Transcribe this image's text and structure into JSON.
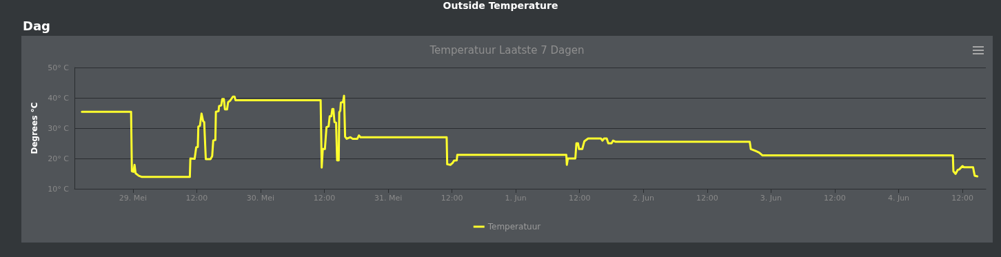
{
  "chart_data": {
    "type": "line",
    "title": "Temperatuur Laatste 7 Dagen",
    "ylabel": "Degrees °C",
    "annotations": [
      "Outside Temperature",
      "Dag"
    ],
    "xlim": [
      "--05-28T13:00",
      "--06-04T16:24"
    ],
    "xticks": [
      {
        "value": "--05-29",
        "label": "29. Mei"
      },
      {
        "value": "--05-29T12:00",
        "label": "12:00"
      },
      {
        "value": "--05-30",
        "label": "30. Mei"
      },
      {
        "value": "--05-30T12:00",
        "label": "12:00"
      },
      {
        "value": "--05-31",
        "label": "31. Mei"
      },
      {
        "value": "--05-31T12:00",
        "label": "12:00"
      },
      {
        "value": "--06-01",
        "label": "1. Jun"
      },
      {
        "value": "--06-01T12:00",
        "label": "12:00"
      },
      {
        "value": "--06-02",
        "label": "2. Jun"
      },
      {
        "value": "--06-02T12:00",
        "label": "12:00"
      },
      {
        "value": "--06-03",
        "label": "3. Jun"
      },
      {
        "value": "--06-03T12:00",
        "label": "12:00"
      },
      {
        "value": "--06-04",
        "label": "4. Jun"
      },
      {
        "value": "--06-04T12:00",
        "label": "12:00"
      }
    ],
    "ylim": [
      10,
      50
    ],
    "yticks": [
      {
        "value": 10,
        "label": "10° C"
      },
      {
        "value": 20,
        "label": "20° C"
      },
      {
        "value": 30,
        "label": "30° C"
      },
      {
        "value": 40,
        "label": "40° C"
      },
      {
        "value": 50,
        "label": "50° C"
      }
    ],
    "grid": "y",
    "legend": "bottom",
    "marker": "none",
    "line_style": "solid",
    "series": [
      {
        "name": "Temperatuur",
        "color": "#ffff2e",
        "x": [
          "--05-28T14:24",
          "--05-28T23:39",
          "--05-28T23:48",
          "--05-29T00:06",
          "--05-29T00:18",
          "--05-29T00:30",
          "--05-29T01:06",
          "--05-29T01:42",
          "--05-29T10:42",
          "--05-29T10:48",
          "--05-29T11:36",
          "--05-29T11:54",
          "--05-29T12:12",
          "--05-29T12:18",
          "--05-29T12:36",
          "--05-29T12:54",
          "--05-29T13:12",
          "--05-29T13:24",
          "--05-29T13:42",
          "--05-29T14:36",
          "--05-29T14:54",
          "--05-29T15:06",
          "--05-29T15:30",
          "--05-29T15:36",
          "--05-29T16:06",
          "--05-29T16:12",
          "--05-29T16:36",
          "--05-29T16:48",
          "--05-29T17:06",
          "--05-29T17:18",
          "--05-29T17:42",
          "--05-29T17:54",
          "--05-29T18:18",
          "--05-29T18:48",
          "--05-29T19:06",
          "--05-29T19:18",
          "--05-30T11:18",
          "--05-30T11:30",
          "--05-30T11:42",
          "--05-30T12:06",
          "--05-30T12:24",
          "--05-30T12:48",
          "--05-30T13:00",
          "--05-30T13:18",
          "--05-30T13:30",
          "--05-30T13:42",
          "--05-30T13:54",
          "--05-30T14:12",
          "--05-30T14:24",
          "--05-30T14:42",
          "--05-30T14:48",
          "--05-30T15:00",
          "--05-30T15:06",
          "--05-30T15:30",
          "--05-30T15:42",
          "--05-30T15:54",
          "--05-30T16:12",
          "--05-30T16:54",
          "--05-30T17:18",
          "--05-30T18:12",
          "--05-30T18:30",
          "--05-30T18:48",
          "--05-31T11:00",
          "--05-31T11:06",
          "--05-31T11:42",
          "--05-31T12:06",
          "--05-31T12:24",
          "--05-31T12:54",
          "--05-31T13:00",
          "--06-01T09:30",
          "--06-01T09:36",
          "--06-01T09:48",
          "--06-01T11:12",
          "--06-01T11:24",
          "--06-01T11:42",
          "--06-01T11:54",
          "--06-01T12:30",
          "--06-01T12:54",
          "--06-01T13:36",
          "--06-01T16:00",
          "--06-01T16:18",
          "--06-01T16:36",
          "--06-01T17:06",
          "--06-01T17:24",
          "--06-01T18:00",
          "--06-01T18:18",
          "--06-01T18:48",
          "--06-02T20:00",
          "--06-02T20:12",
          "--06-02T21:12",
          "--06-02T21:48",
          "--06-02T22:24",
          "--06-04T10:12",
          "--06-04T10:18",
          "--06-04T10:42",
          "--06-04T11:06",
          "--06-04T11:24",
          "--06-04T12:00",
          "--06-04T12:18",
          "--06-04T14:00",
          "--06-04T14:18",
          "--06-04T14:48"
        ],
        "values": [
          35.4,
          35.4,
          15.8,
          15.6,
          17.9,
          15.1,
          14.3,
          13.9,
          13.9,
          20.0,
          19.9,
          23.7,
          23.8,
          30.5,
          30.8,
          34.8,
          32.3,
          32.0,
          19.8,
          19.8,
          20.8,
          25.9,
          26.1,
          35.4,
          35.6,
          37.3,
          37.5,
          39.6,
          39.6,
          36.2,
          36.2,
          38.6,
          39.1,
          40.4,
          40.4,
          39.2,
          39.2,
          17.0,
          23.1,
          23.1,
          30.3,
          30.6,
          33.9,
          33.9,
          36.3,
          36.3,
          32.0,
          31.8,
          19.4,
          19.4,
          35.2,
          35.8,
          38.4,
          38.6,
          40.7,
          27.2,
          26.5,
          27.0,
          26.5,
          26.5,
          27.6,
          27.0,
          27.0,
          18.1,
          17.9,
          18.5,
          19.3,
          19.4,
          21.2,
          21.2,
          17.9,
          20.0,
          20.0,
          25.0,
          25.0,
          23.1,
          23.1,
          25.7,
          26.6,
          26.6,
          25.9,
          26.6,
          26.6,
          25.0,
          25.0,
          25.9,
          25.5,
          25.5,
          23.1,
          22.4,
          21.9,
          21.0,
          21.0,
          15.8,
          14.9,
          16.2,
          16.4,
          17.5,
          17.1,
          17.1,
          14.3,
          14.1
        ]
      }
    ]
  }
}
